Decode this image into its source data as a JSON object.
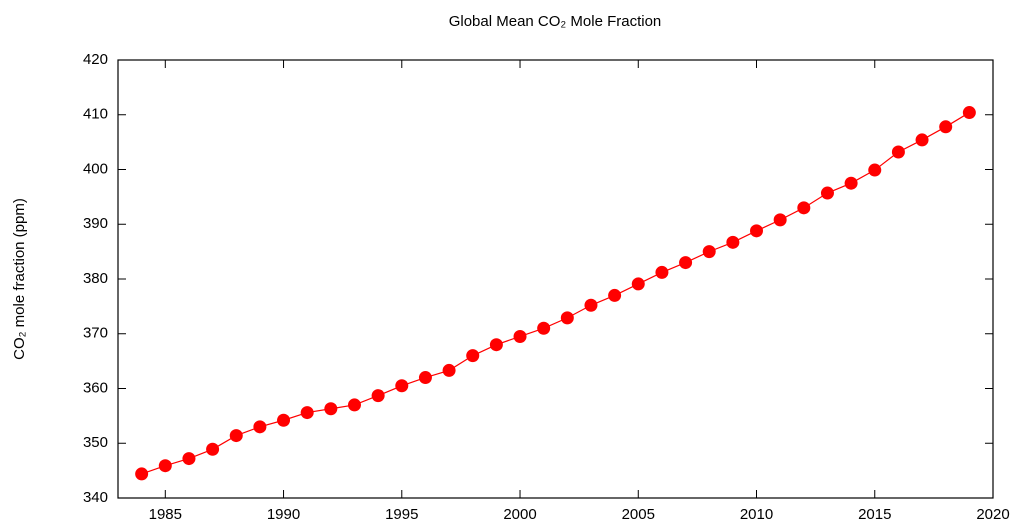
{
  "chart_data": {
    "type": "line",
    "title": "Global Mean CO₂  Mole Fraction",
    "y_label": "CO₂ mole fraction (ppm)",
    "x": [
      1984,
      1985,
      1986,
      1987,
      1988,
      1989,
      1990,
      1991,
      1992,
      1993,
      1994,
      1995,
      1996,
      1997,
      1998,
      1999,
      2000,
      2001,
      2002,
      2003,
      2004,
      2005,
      2006,
      2007,
      2008,
      2009,
      2010,
      2011,
      2012,
      2013,
      2014,
      2015,
      2016,
      2017,
      2018,
      2019
    ],
    "values": [
      344.4,
      345.9,
      347.2,
      348.9,
      351.4,
      353.0,
      354.2,
      355.6,
      356.3,
      357.0,
      358.7,
      360.5,
      362.0,
      363.3,
      366.0,
      368.0,
      369.5,
      371.0,
      372.9,
      375.2,
      377.0,
      379.1,
      381.2,
      383.0,
      385.0,
      386.7,
      388.8,
      390.8,
      393.0,
      395.7,
      397.5,
      399.9,
      403.2,
      405.4,
      407.8,
      410.4
    ],
    "color": "#ff0000",
    "xlim": [
      1983,
      2020
    ],
    "xticks": [
      1985,
      1990,
      1995,
      2000,
      2005,
      2010,
      2015,
      2020
    ],
    "ylim": [
      340,
      420
    ],
    "yticks": [
      340,
      350,
      360,
      370,
      380,
      390,
      400,
      410,
      420
    ]
  }
}
